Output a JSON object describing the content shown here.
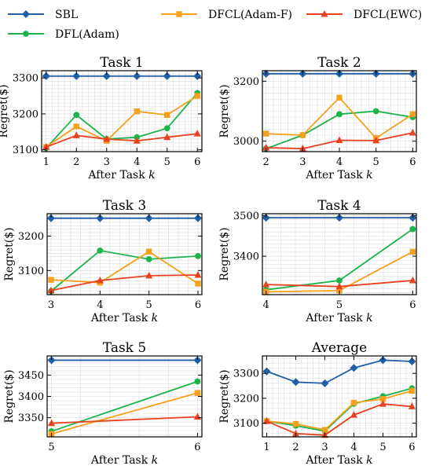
{
  "legend": [
    {
      "name": "SBL",
      "color": "#1f5fa8",
      "marker": "diamond"
    },
    {
      "name": "DFL(Adam)",
      "color": "#1db34b",
      "marker": "circle"
    },
    {
      "name": "DFCL(Adam-F)",
      "color": "#f7a01c",
      "marker": "square"
    },
    {
      "name": "DFCL(EWC)",
      "color": "#e8411e",
      "marker": "triangle"
    }
  ],
  "chart_data": [
    {
      "type": "line",
      "title": "Task 1",
      "xlabel": "After Task k",
      "ylabel": "Regret($)",
      "x": [
        1,
        2,
        3,
        4,
        5,
        6
      ],
      "xlim": [
        0.85,
        6.15
      ],
      "ylim": [
        3095,
        3320
      ],
      "yticks": [
        3100,
        3200,
        3300
      ],
      "grid": true,
      "series": [
        {
          "name": "SBL",
          "values": [
            3305,
            3305,
            3305,
            3305,
            3305,
            3305
          ]
        },
        {
          "name": "DFL(Adam)",
          "values": [
            3105,
            3197,
            3130,
            3135,
            3160,
            3258
          ]
        },
        {
          "name": "DFCL(Adam-F)",
          "values": [
            3108,
            3165,
            3125,
            3207,
            3197,
            3250
          ]
        },
        {
          "name": "DFCL(EWC)",
          "values": [
            3108,
            3140,
            3130,
            3125,
            3135,
            3145
          ]
        }
      ]
    },
    {
      "type": "line",
      "title": "Task 2",
      "xlabel": "After Task k",
      "ylabel": "Regret($)",
      "x": [
        2,
        3,
        4,
        5,
        6
      ],
      "xlim": [
        1.9,
        6.1
      ],
      "ylim": [
        2965,
        3235
      ],
      "yticks": [
        3000,
        3200
      ],
      "grid": true,
      "series": [
        {
          "name": "SBL",
          "values": [
            3225,
            3225,
            3225,
            3225,
            3225
          ]
        },
        {
          "name": "DFL(Adam)",
          "values": [
            2975,
            3020,
            3090,
            3100,
            3080
          ]
        },
        {
          "name": "DFCL(Adam-F)",
          "values": [
            3025,
            3020,
            3145,
            3010,
            3090
          ]
        },
        {
          "name": "DFCL(EWC)",
          "values": [
            2978,
            2975,
            3003,
            3002,
            3028
          ]
        }
      ]
    },
    {
      "type": "line",
      "title": "Task 3",
      "xlabel": "After Task k",
      "ylabel": "Regret($)",
      "x": [
        3,
        4,
        5,
        6
      ],
      "xlim": [
        2.92,
        6.08
      ],
      "ylim": [
        3030,
        3265
      ],
      "yticks": [
        3100,
        3200
      ],
      "grid": true,
      "series": [
        {
          "name": "SBL",
          "values": [
            3252,
            3252,
            3252,
            3252
          ]
        },
        {
          "name": "DFL(Adam)",
          "values": [
            3040,
            3158,
            3133,
            3142
          ]
        },
        {
          "name": "DFCL(Adam-F)",
          "values": [
            3073,
            3065,
            3155,
            3062
          ]
        },
        {
          "name": "DFCL(EWC)",
          "values": [
            3042,
            3071,
            3085,
            3087
          ]
        }
      ]
    },
    {
      "type": "line",
      "title": "Task 4",
      "xlabel": "After Task k",
      "ylabel": "Regret($)",
      "x": [
        4,
        5,
        6
      ],
      "xlim": [
        3.95,
        6.05
      ],
      "ylim": [
        3305,
        3505
      ],
      "yticks": [
        3400,
        3500
      ],
      "grid": true,
      "series": [
        {
          "name": "SBL",
          "values": [
            3495,
            3495,
            3495
          ]
        },
        {
          "name": "DFL(Adam)",
          "values": [
            3317,
            3340,
            3467
          ]
        },
        {
          "name": "DFCL(Adam-F)",
          "values": [
            3312,
            3315,
            3411
          ]
        },
        {
          "name": "DFCL(EWC)",
          "values": [
            3330,
            3325,
            3340
          ]
        }
      ]
    },
    {
      "type": "line",
      "title": "Task 5",
      "xlabel": "After Task k",
      "ylabel": "Regret($)",
      "x": [
        5,
        6
      ],
      "xlim": [
        4.97,
        6.03
      ],
      "ylim": [
        3305,
        3495
      ],
      "yticks": [
        3350,
        3400,
        3450
      ],
      "grid": true,
      "series": [
        {
          "name": "SBL",
          "values": [
            3485,
            3485
          ]
        },
        {
          "name": "DFL(Adam)",
          "values": [
            3318,
            3435
          ]
        },
        {
          "name": "DFCL(Adam-F)",
          "values": [
            3312,
            3408
          ]
        },
        {
          "name": "DFCL(EWC)",
          "values": [
            3337,
            3352
          ]
        }
      ]
    },
    {
      "type": "line",
      "title": "Average",
      "xlabel": "After Task k",
      "ylabel": "Regret($)",
      "x": [
        1,
        2,
        3,
        4,
        5,
        6
      ],
      "xlim": [
        0.85,
        6.15
      ],
      "ylim": [
        3045,
        3370
      ],
      "yticks": [
        3100,
        3200,
        3300
      ],
      "grid": true,
      "series": [
        {
          "name": "SBL",
          "values": [
            3308,
            3265,
            3260,
            3322,
            3353,
            3348
          ]
        },
        {
          "name": "DFL(Adam)",
          "values": [
            3108,
            3090,
            3068,
            3178,
            3208,
            3240
          ]
        },
        {
          "name": "DFCL(Adam-F)",
          "values": [
            3108,
            3097,
            3073,
            3182,
            3197,
            3230
          ]
        },
        {
          "name": "DFCL(EWC)",
          "values": [
            3108,
            3058,
            3052,
            3133,
            3177,
            3167
          ]
        }
      ]
    }
  ]
}
